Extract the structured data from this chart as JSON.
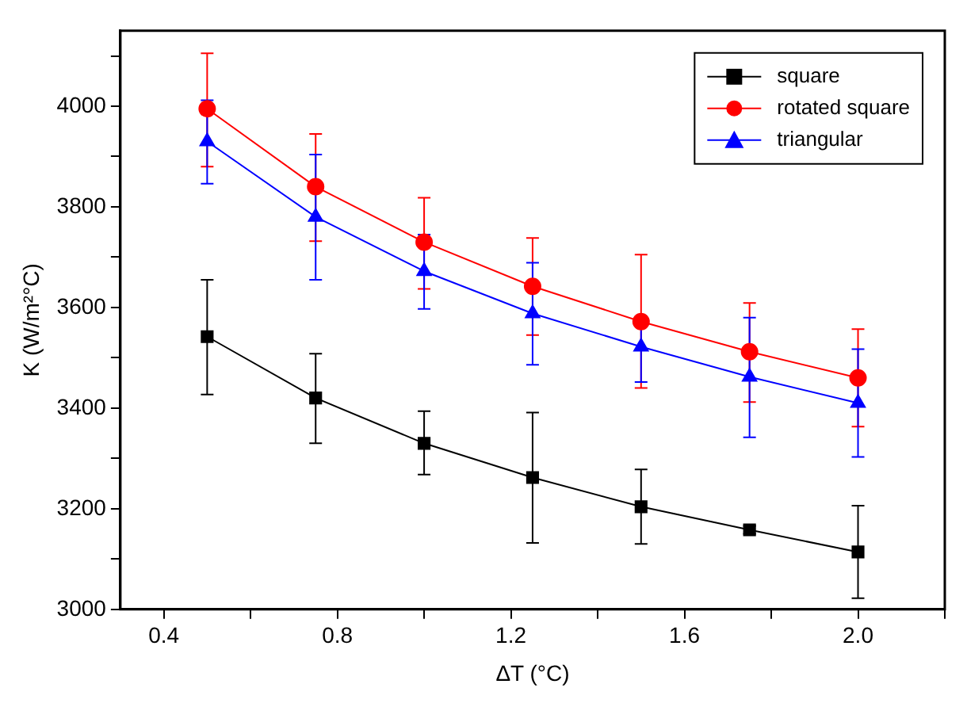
{
  "chart_data": {
    "type": "line",
    "xlabel": "ΔT (°C)",
    "ylabel": "K (W/m²°C)",
    "x": [
      0.5,
      0.75,
      1.0,
      1.25,
      1.5,
      1.75,
      2.0
    ],
    "xlim": [
      0.3,
      2.2
    ],
    "xticks": [
      0.4,
      {
        "value": 0.6,
        "label": null
      },
      0.8,
      {
        "value": 1.0,
        "label": null
      },
      1.2,
      {
        "value": 1.4,
        "label": null
      },
      1.6,
      {
        "value": 1.8,
        "label": null
      },
      {
        "value": 2.0,
        "label": "2.0"
      },
      {
        "value": 2.2,
        "label": null
      }
    ],
    "ylim": [
      3000,
      4150
    ],
    "yticks": [
      3000,
      {
        "value": 3100,
        "label": null
      },
      3200,
      {
        "value": 3300,
        "label": null
      },
      3400,
      {
        "value": 3500,
        "label": null
      },
      3600,
      {
        "value": 3700,
        "label": null
      },
      3800,
      {
        "value": 3900,
        "label": null
      },
      4000,
      {
        "value": 4100,
        "label": null
      }
    ],
    "grid": false,
    "legend": "top right",
    "line_style": "solid",
    "series": [
      {
        "name": "square",
        "color": "#000000",
        "marker": "square",
        "values": [
          3542,
          3420,
          3330,
          3262,
          3204,
          3158,
          3114
        ],
        "errors": [
          [
            3427,
            3655
          ],
          [
            3330,
            3508
          ],
          [
            3268,
            3394
          ],
          [
            3132,
            3391
          ],
          [
            3130,
            3278
          ],
          [
            3150,
            3166
          ],
          [
            3022,
            3206
          ]
        ]
      },
      {
        "name": "rotated square",
        "color": "#ff0000",
        "marker": "circle",
        "values": [
          3995,
          3840,
          3730,
          3642,
          3572,
          3512,
          3460
        ],
        "errors": [
          [
            3880,
            4105
          ],
          [
            3732,
            3945
          ],
          [
            3637,
            3818
          ],
          [
            3545,
            3738
          ],
          [
            3440,
            3705
          ],
          [
            3412,
            3609
          ],
          [
            3363,
            3557
          ]
        ]
      },
      {
        "name": "triangular",
        "color": "#0000ff",
        "marker": "triangle",
        "values": [
          3930,
          3780,
          3672,
          3588,
          3522,
          3462,
          3410
        ],
        "errors": [
          [
            3846,
            4012
          ],
          [
            3655,
            3904
          ],
          [
            3597,
            3745
          ],
          [
            3486,
            3689
          ],
          [
            3452,
            3582
          ],
          [
            3342,
            3580
          ],
          [
            3303,
            3517
          ]
        ]
      }
    ]
  }
}
